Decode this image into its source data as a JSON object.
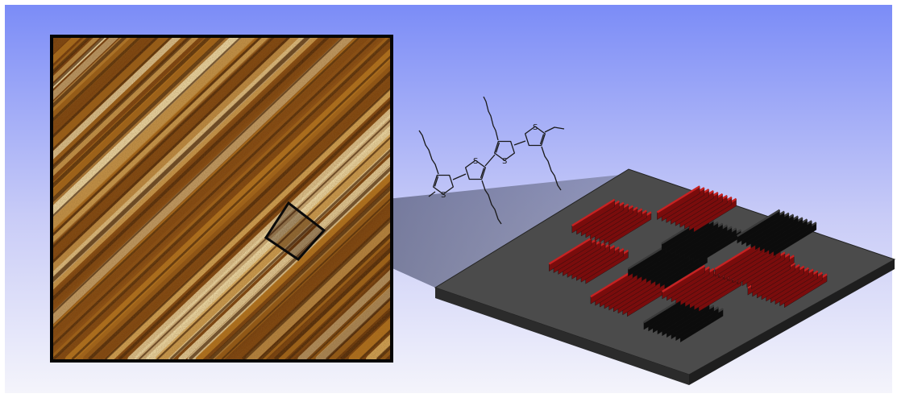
{
  "figure": {
    "background_gradient": [
      "#7b8cf7",
      "#c9ccf7",
      "#f4f4fb"
    ],
    "afm_panel": {
      "description_icon": "afm-height-image",
      "colors": [
        "#3a1a04",
        "#7a3f0c",
        "#b8741c",
        "#e0b060",
        "#fff0c0"
      ]
    },
    "molecule": {
      "atom_label": "S",
      "ring_count": 4,
      "stroke_color": "#1a1a1a"
    },
    "device": {
      "substrate_color": "#4a4a4a",
      "lamella_colors": [
        "#b01818",
        "#1a1a1a"
      ]
    }
  }
}
